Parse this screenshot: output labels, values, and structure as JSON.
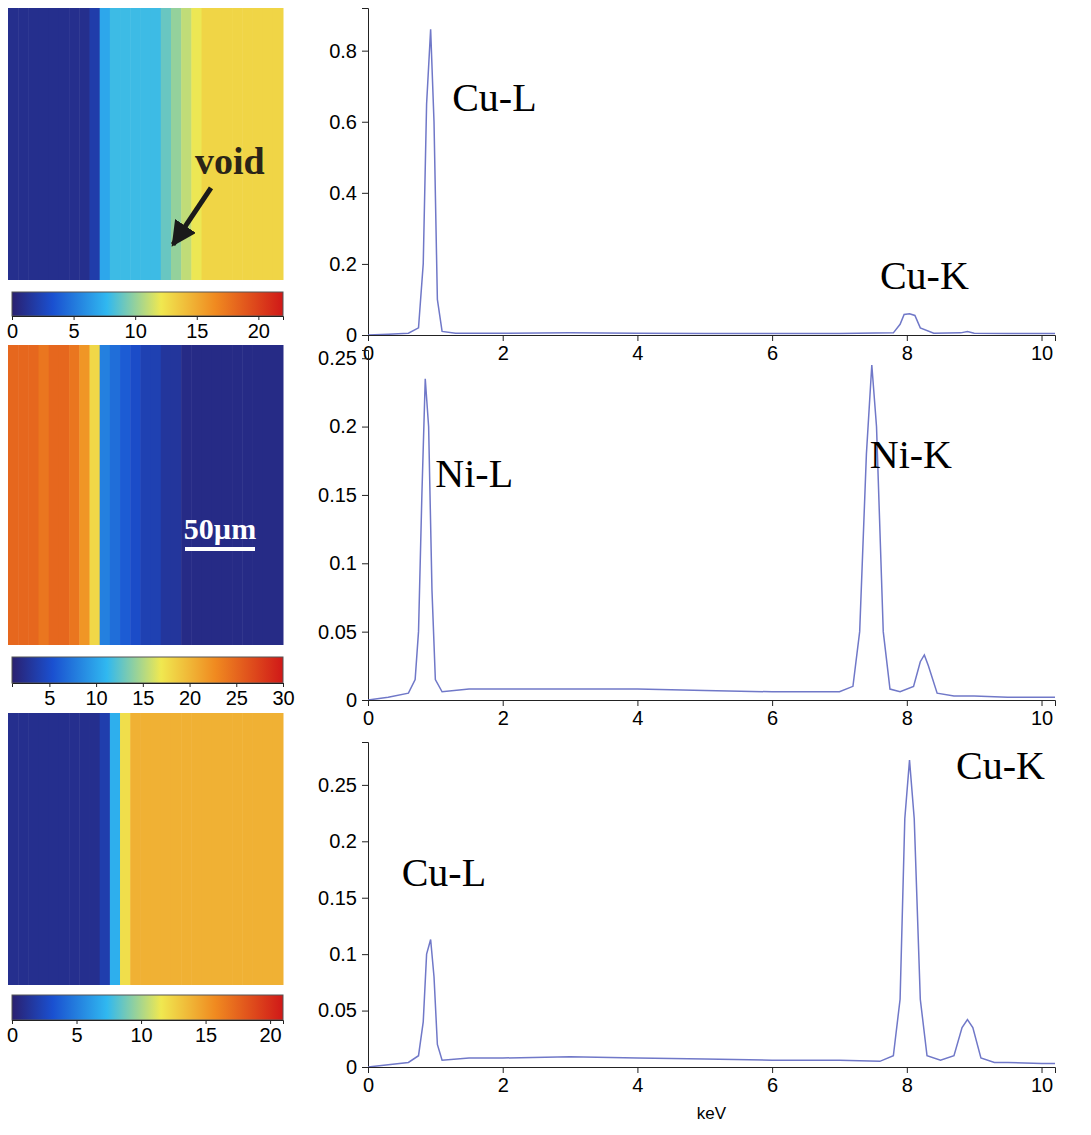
{
  "chart_data": [
    {
      "type": "heatmap",
      "values": [
        1,
        1,
        1,
        1,
        1,
        1,
        1,
        1,
        2,
        7,
        8,
        8,
        8,
        8,
        8,
        9,
        10,
        11,
        12,
        13,
        13,
        13,
        13,
        13,
        13,
        13,
        13
      ],
      "colorbar": {
        "range": [
          0,
          22
        ],
        "ticks": [
          0,
          5,
          10,
          15,
          20
        ]
      },
      "annotations": [
        {
          "text": "void"
        }
      ]
    },
    {
      "type": "line",
      "x": [
        0,
        0.3,
        0.6,
        0.75,
        0.82,
        0.87,
        0.93,
        0.98,
        1.03,
        1.1,
        1.3,
        2,
        3,
        4,
        5,
        6,
        7,
        7.8,
        7.9,
        7.96,
        8.04,
        8.12,
        8.2,
        8.4,
        8.8,
        8.9,
        9.0,
        9.5,
        10,
        10.2
      ],
      "values": [
        0,
        0.002,
        0.005,
        0.02,
        0.2,
        0.65,
        0.86,
        0.6,
        0.1,
        0.01,
        0.005,
        0.005,
        0.006,
        0.005,
        0.004,
        0.004,
        0.004,
        0.006,
        0.03,
        0.058,
        0.06,
        0.055,
        0.02,
        0.005,
        0.006,
        0.01,
        0.005,
        0.004,
        0.004,
        0.004
      ],
      "color": "#7078c8",
      "xlim": [
        0,
        10.2
      ],
      "xticks": [
        0,
        2,
        4,
        6,
        8,
        10
      ],
      "ylim": [
        0,
        0.92
      ],
      "yticks": [
        0,
        0.2,
        0.4,
        0.6,
        0.8
      ],
      "annotations": [
        {
          "text": "Cu-L",
          "x": 1.25,
          "y": 0.63
        },
        {
          "text": "Cu-K",
          "x": 7.6,
          "y": 0.13
        }
      ]
    },
    {
      "type": "heatmap",
      "values": [
        25,
        25,
        25,
        24,
        25,
        25,
        24,
        22,
        18,
        8,
        7,
        6,
        5,
        4,
        4,
        3,
        3,
        2,
        2,
        2,
        2,
        2,
        2,
        2,
        2,
        2,
        2
      ],
      "colorbar": {
        "range": [
          1,
          30
        ],
        "ticks": [
          5,
          10,
          15,
          20,
          25,
          30
        ]
      },
      "scale_bar": "50µm"
    },
    {
      "type": "line",
      "x": [
        0,
        0.3,
        0.6,
        0.7,
        0.75,
        0.8,
        0.85,
        0.9,
        0.95,
        1.0,
        1.1,
        1.5,
        2,
        3,
        4,
        5,
        6,
        7,
        7.2,
        7.3,
        7.4,
        7.48,
        7.55,
        7.65,
        7.75,
        7.9,
        8.1,
        8.2,
        8.26,
        8.32,
        8.45,
        8.7,
        9,
        9.5,
        10,
        10.2
      ],
      "values": [
        0,
        0.002,
        0.005,
        0.015,
        0.05,
        0.15,
        0.235,
        0.2,
        0.08,
        0.015,
        0.006,
        0.008,
        0.008,
        0.008,
        0.008,
        0.007,
        0.006,
        0.006,
        0.01,
        0.05,
        0.18,
        0.245,
        0.2,
        0.05,
        0.008,
        0.006,
        0.01,
        0.028,
        0.033,
        0.025,
        0.005,
        0.003,
        0.003,
        0.002,
        0.002,
        0.002
      ],
      "color": "#7078c8",
      "xlim": [
        0,
        10.2
      ],
      "xticks": [
        0,
        2,
        4,
        6,
        8,
        10
      ],
      "ylim": [
        0,
        0.256
      ],
      "yticks": [
        0,
        0.05,
        0.1,
        0.15,
        0.2,
        0.25
      ],
      "annotations": [
        {
          "text": "Ni-L",
          "x": 1.0,
          "y": 0.156
        },
        {
          "text": "Ni-K",
          "x": 7.45,
          "y": 0.17
        }
      ]
    },
    {
      "type": "heatmap",
      "values": [
        1,
        1,
        1,
        1,
        1,
        1,
        1,
        1,
        1,
        2,
        7,
        12,
        14,
        14,
        14,
        14,
        14,
        14,
        14,
        14,
        14,
        14,
        14,
        14,
        14,
        14,
        14
      ],
      "colorbar": {
        "range": [
          0,
          21
        ],
        "ticks": [
          0,
          5,
          10,
          15,
          20
        ]
      }
    },
    {
      "type": "line",
      "x": [
        0,
        0.3,
        0.6,
        0.75,
        0.82,
        0.87,
        0.93,
        0.98,
        1.03,
        1.1,
        1.5,
        2,
        3,
        4,
        5,
        6,
        7,
        7.6,
        7.8,
        7.9,
        7.97,
        8.04,
        8.11,
        8.2,
        8.3,
        8.5,
        8.7,
        8.82,
        8.9,
        8.98,
        9.1,
        9.3,
        9.5,
        10,
        10.2
      ],
      "values": [
        0,
        0.002,
        0.004,
        0.01,
        0.04,
        0.1,
        0.113,
        0.08,
        0.02,
        0.006,
        0.008,
        0.008,
        0.009,
        0.008,
        0.007,
        0.006,
        0.006,
        0.005,
        0.01,
        0.06,
        0.22,
        0.272,
        0.22,
        0.06,
        0.01,
        0.006,
        0.01,
        0.035,
        0.042,
        0.035,
        0.008,
        0.004,
        0.004,
        0.003,
        0.003
      ],
      "color": "#7078c8",
      "xlim": [
        0,
        10.2
      ],
      "xticks": [
        0,
        2,
        4,
        6,
        8,
        10
      ],
      "ylim": [
        0,
        0.288
      ],
      "yticks": [
        0,
        0.05,
        0.1,
        0.15,
        0.2,
        0.25
      ],
      "xlabel": "keV",
      "annotations": [
        {
          "text": "Cu-L",
          "x": 0.5,
          "y": 0.16
        },
        {
          "text": "Cu-K",
          "x": 8.73,
          "y": 0.255
        }
      ]
    }
  ]
}
